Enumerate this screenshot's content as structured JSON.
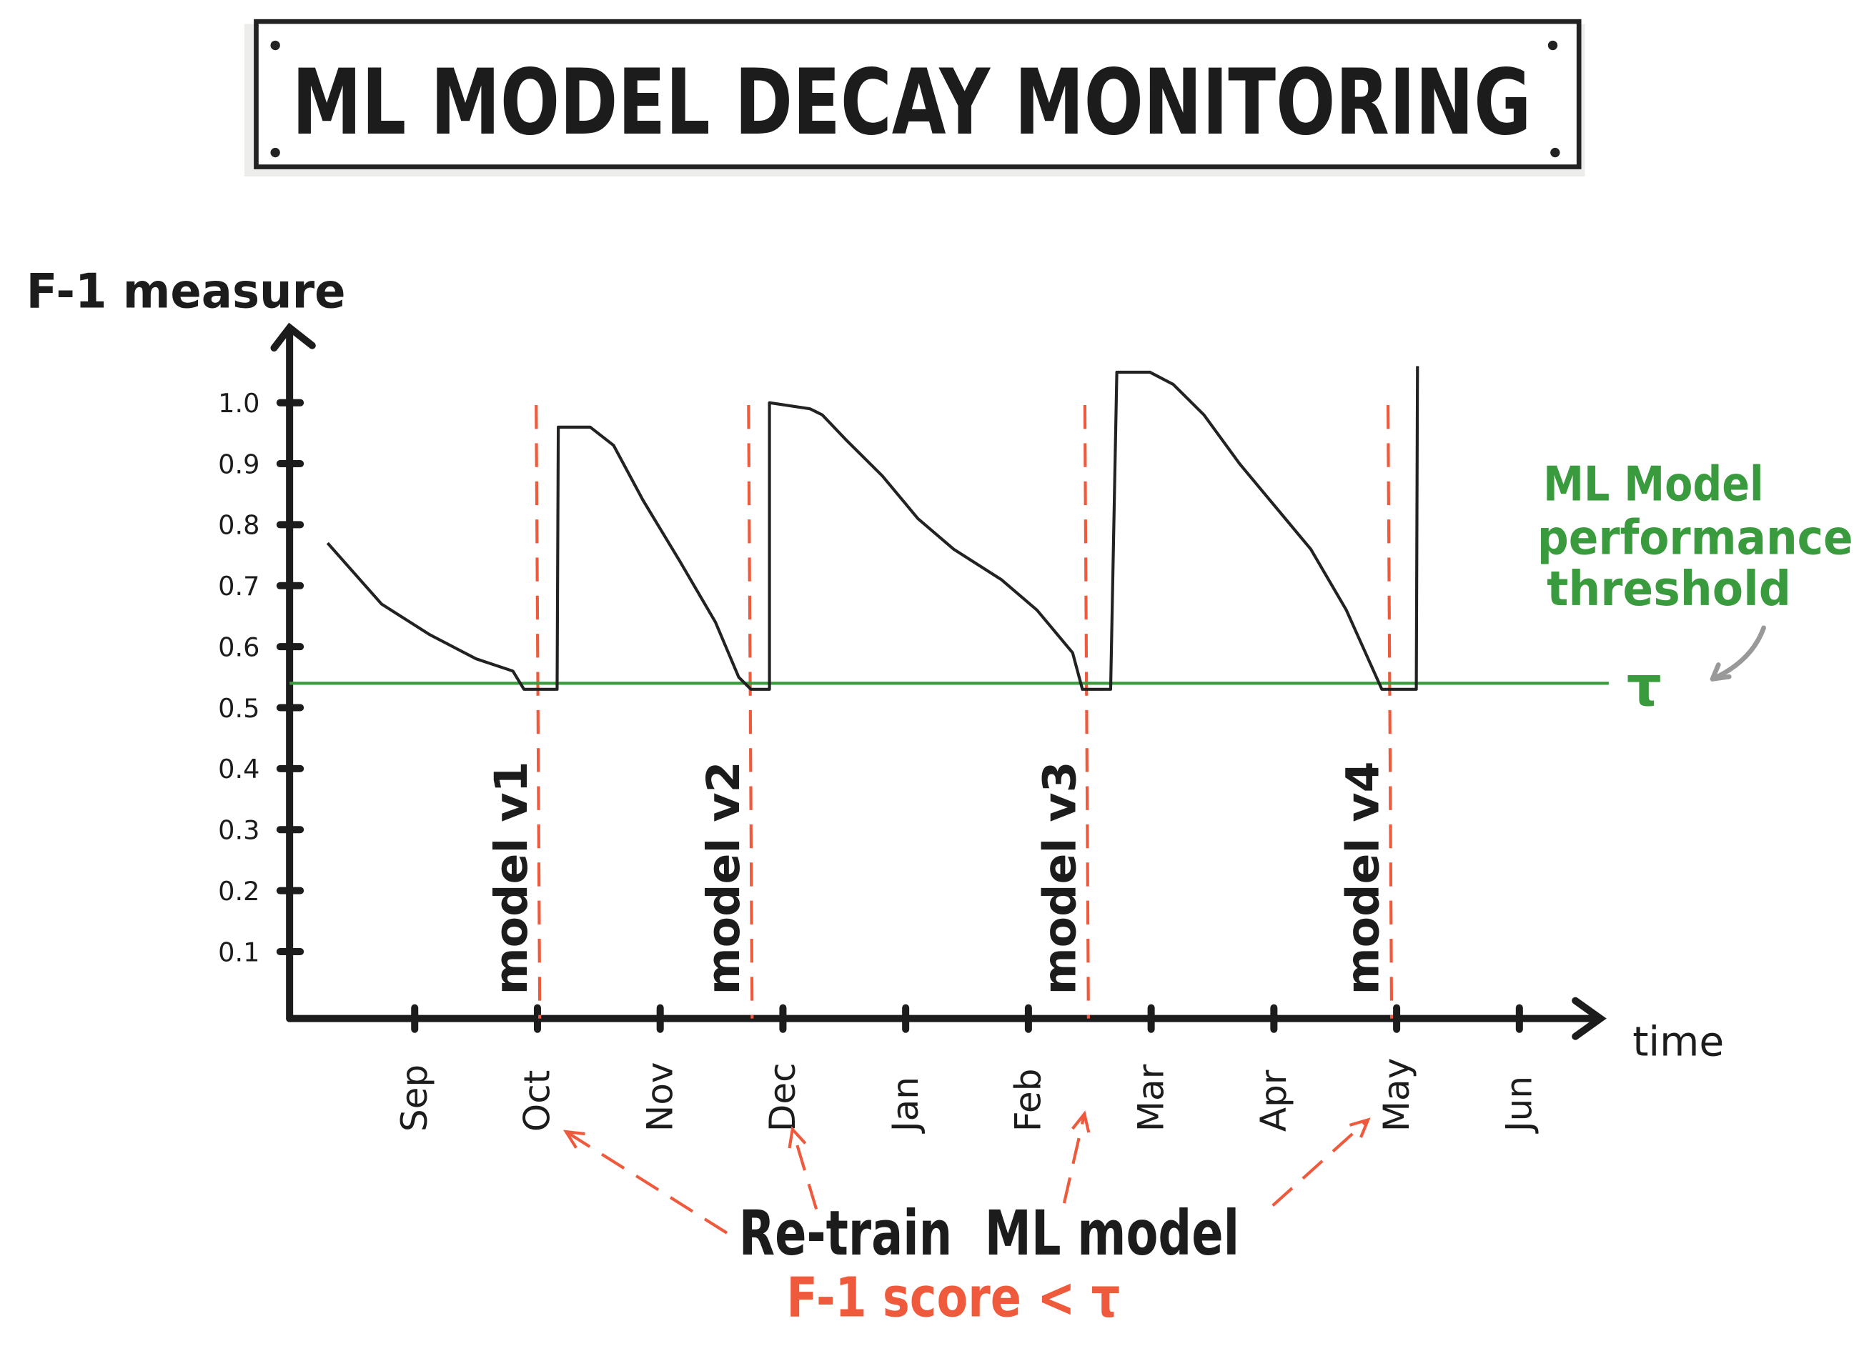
{
  "chart_data": {
    "type": "line",
    "title": "ML MODEL DECAY MONITORING",
    "ylabel": "F-1 measure",
    "xlabel": "time",
    "ylim": [
      0,
      1.0
    ],
    "y_ticks": [
      "0.1",
      "0.2",
      "0.3",
      "0.4",
      "0.5",
      "0.6",
      "0.7",
      "0.8",
      "0.9",
      "1.0"
    ],
    "categories": [
      "Sep",
      "Oct",
      "Nov",
      "Dec",
      "Jan",
      "Feb",
      "Mar",
      "Apr",
      "May",
      "Jun"
    ],
    "grid": false,
    "series": [
      {
        "color": "#222222",
        "x": [
          -0.71,
          -0.27,
          0.12,
          0.5,
          0.8,
          0.89,
          1.16,
          1.17,
          1.43,
          1.62,
          1.86,
          2.16,
          2.45,
          2.64,
          2.74,
          2.89,
          2.89,
          3.22,
          3.32,
          3.51,
          3.81,
          4.1,
          4.39,
          4.78,
          5.07,
          5.36,
          5.44,
          5.67,
          5.72,
          5.99,
          6.18,
          6.43,
          6.72,
          7.01,
          7.3,
          7.59,
          7.88,
          8.16,
          8.17
        ],
        "y": [
          0.77,
          0.67,
          0.62,
          0.58,
          0.56,
          0.53,
          0.53,
          0.96,
          0.96,
          0.93,
          0.84,
          0.74,
          0.64,
          0.55,
          0.53,
          0.53,
          1.0,
          0.99,
          0.98,
          0.94,
          0.88,
          0.81,
          0.76,
          0.71,
          0.66,
          0.59,
          0.53,
          0.53,
          1.05,
          1.05,
          1.03,
          0.98,
          0.9,
          0.83,
          0.76,
          0.66,
          0.53,
          0.53,
          1.06
        ]
      }
    ],
    "threshold": {
      "value": 0.54,
      "symbol": "τ",
      "color": "#3a9a3e",
      "label_lines": [
        "ML Model",
        "performance",
        "threshold"
      ]
    },
    "retrain_markers": [
      {
        "x": 0.99,
        "label": "model v1"
      },
      {
        "x": 2.72,
        "label": "model v2"
      },
      {
        "x": 5.46,
        "label": "model v3"
      },
      {
        "x": 7.93,
        "label": "model v4"
      }
    ],
    "retrain_color": "#f05a3c",
    "annotations": {
      "retrain": "Re-train  ML model",
      "condition": "F-1 score < τ"
    }
  }
}
